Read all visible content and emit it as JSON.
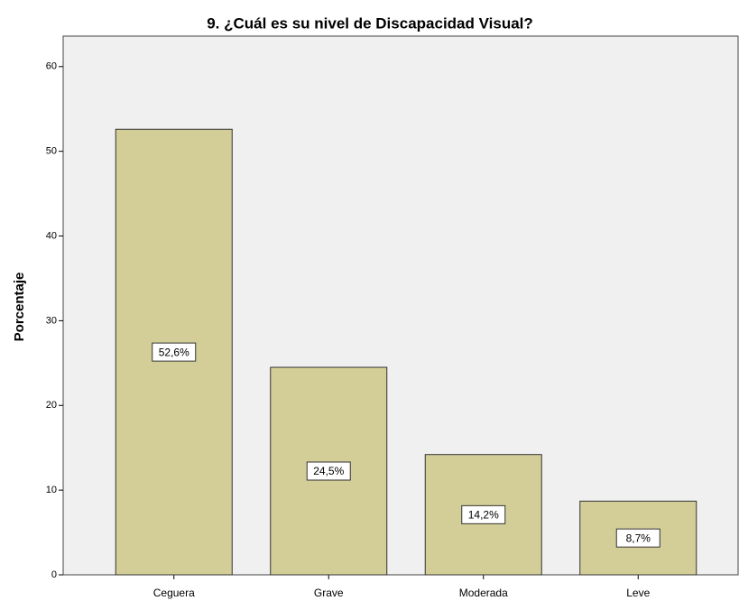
{
  "chart_data": {
    "type": "bar",
    "title": "9. ¿Cuál es su nivel de Discapacidad Visual?",
    "y_label": "Porcentaje",
    "categories": [
      "Ceguera",
      "Grave",
      "Moderada",
      "Leve"
    ],
    "values": [
      52.6,
      24.5,
      14.2,
      8.7
    ],
    "value_labels": [
      "52,6%",
      "24,5%",
      "14,2%",
      "8,7%"
    ],
    "color": "#d3ce97",
    "ylim": [
      0,
      63.6
    ],
    "yticks": [
      0,
      10,
      20,
      30,
      40,
      50,
      60
    ],
    "grid": false
  }
}
